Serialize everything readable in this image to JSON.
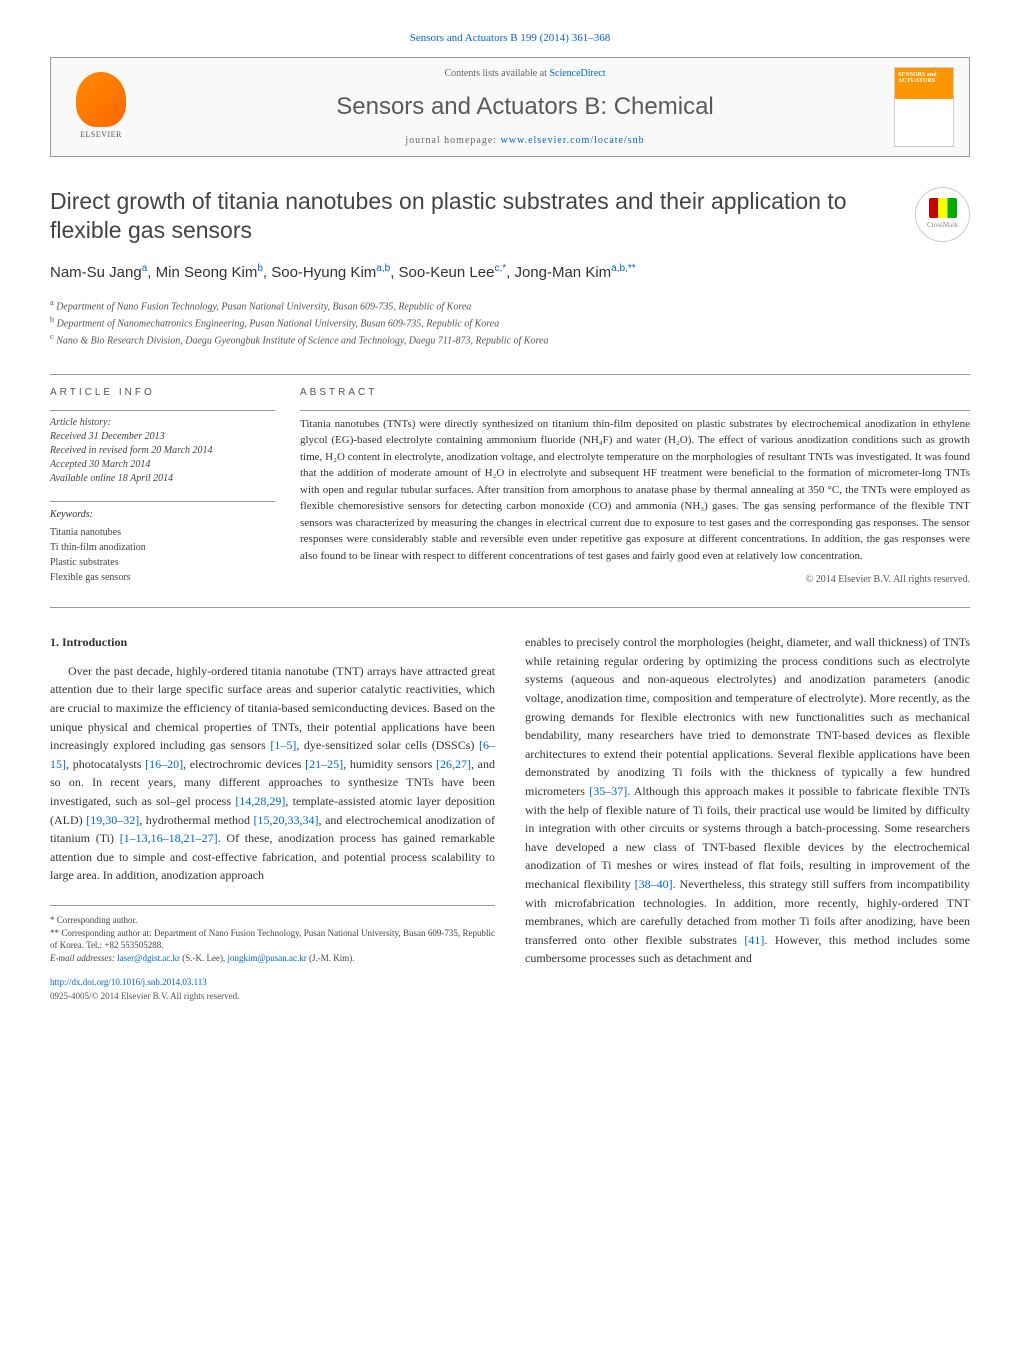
{
  "header": {
    "citation": "Sensors and Actuators B 199 (2014) 361–368",
    "contents_prefix": "Contents lists available at ",
    "contents_link": "ScienceDirect",
    "journal_name": "Sensors and Actuators B: Chemical",
    "homepage_prefix": "journal homepage: ",
    "homepage_link": "www.elsevier.com/locate/snb",
    "publisher": "ELSEVIER",
    "cover_label_1": "SENSORS and",
    "cover_label_2": "ACTUATORS",
    "crossmark": "CrossMark"
  },
  "article": {
    "title": "Direct growth of titania nanotubes on plastic substrates and their application to flexible gas sensors",
    "authors_html": "Nam-Su Jang<sup>a</sup>, Min Seong Kim<sup>b</sup>, Soo-Hyung Kim<sup>a,b</sup>, Soo-Keun Lee<sup>c,*</sup>, Jong-Man Kim<sup>a,b,**</sup>",
    "affiliations": [
      {
        "sup": "a",
        "text": "Department of Nano Fusion Technology, Pusan National University, Busan 609-735, Republic of Korea"
      },
      {
        "sup": "b",
        "text": "Department of Nanomechatronics Engineering, Pusan National University, Busan 609-735, Republic of Korea"
      },
      {
        "sup": "c",
        "text": "Nano & Bio Research Division, Daegu Gyeongbuk Institute of Science and Technology, Daegu 711-873, Republic of Korea"
      }
    ]
  },
  "info": {
    "heading": "ARTICLE INFO",
    "history_label": "Article history:",
    "received": "Received 31 December 2013",
    "revised": "Received in revised form 20 March 2014",
    "accepted": "Accepted 30 March 2014",
    "online": "Available online 18 April 2014",
    "keywords_label": "Keywords:",
    "keywords": [
      "Titania nanotubes",
      "Ti thin-film anodization",
      "Plastic substrates",
      "Flexible gas sensors"
    ]
  },
  "abstract": {
    "heading": "ABSTRACT",
    "text": "Titania nanotubes (TNTs) were directly synthesized on titanium thin-film deposited on plastic substrates by electrochemical anodization in ethylene glycol (EG)-based electrolyte containing ammonium fluoride (NH₄F) and water (H₂O). The effect of various anodization conditions such as growth time, H₂O content in electrolyte, anodization voltage, and electrolyte temperature on the morphologies of resultant TNTs was investigated. It was found that the addition of moderate amount of H₂O in electrolyte and subsequent HF treatment were beneficial to the formation of micrometer-long TNTs with open and regular tubular surfaces. After transition from amorphous to anatase phase by thermal annealing at 350 °C, the TNTs were employed as flexible chemoresistive sensors for detecting carbon monoxide (CO) and ammonia (NH₃) gases. The gas sensing performance of the flexible TNT sensors was characterized by measuring the changes in electrical current due to exposure to test gases and the corresponding gas responses. The sensor responses were considerably stable and reversible even under repetitive gas exposure at different concentrations. In addition, the gas responses were also found to be linear with respect to different concentrations of test gases and fairly good even at relatively low concentration.",
    "copyright": "© 2014 Elsevier B.V. All rights reserved."
  },
  "body": {
    "section_heading": "1. Introduction",
    "col1_para": "Over the past decade, highly-ordered titania nanotube (TNT) arrays have attracted great attention due to their large specific surface areas and superior catalytic reactivities, which are crucial to maximize the efficiency of titania-based semiconducting devices. Based on the unique physical and chemical properties of TNTs, their potential applications have been increasingly explored including gas sensors ",
    "refs": {
      "r1_5": "[1–5]",
      "r6_15": "[6–15]",
      "r16_20": "[16–20]",
      "r21_25": "[21–25]",
      "r26_27": "[26,27]",
      "r14_28_29": "[14,28,29]",
      "r19_30_32": "[19,30–32]",
      "r15_20_33_34": "[15,20,33,34]",
      "r1_13_16_18_21_27": "[1–13,16–18,21–27]",
      "r35_37": "[35–37]",
      "r38_40": "[38–40]",
      "r41": "[41]"
    },
    "col1_p2": ", dye-sensitized solar cells (DSSCs) ",
    "col1_p3": ", photocatalysts ",
    "col1_p4": ", electrochromic devices ",
    "col1_p5": ", humidity sensors ",
    "col1_p6": ", and so on. In recent years, many different approaches to synthesize TNTs have been investigated, such as sol–gel process ",
    "col1_p7": ", template-assisted atomic layer deposition (ALD) ",
    "col1_p8": ", hydrothermal method ",
    "col1_p9": ", and electrochemical anodization of titanium (Ti) ",
    "col1_p10": ". Of these, anodization process has gained remarkable attention due to simple and cost-effective fabrication, and potential process scalability to large area. In addition, anodization approach",
    "col2_para": "enables to precisely control the morphologies (height, diameter, and wall thickness) of TNTs while retaining regular ordering by optimizing the process conditions such as electrolyte systems (aqueous and non-aqueous electrolytes) and anodization parameters (anodic voltage, anodization time, composition and temperature of electrolyte). More recently, as the growing demands for flexible electronics with new functionalities such as mechanical bendability, many researchers have tried to demonstrate TNT-based devices as flexible architectures to extend their potential applications. Several flexible applications have been demonstrated by anodizing Ti foils with the thickness of typically a few hundred micrometers ",
    "col2_p2": ". Although this approach makes it possible to fabricate flexible TNTs with the help of flexible nature of Ti foils, their practical use would be limited by difficulty in integration with other circuits or systems through a batch-processing. Some researchers have developed a new class of TNT-based flexible devices by the electrochemical anodization of Ti meshes or wires instead of flat foils, resulting in improvement of the mechanical flexibility ",
    "col2_p3": ". Nevertheless, this strategy still suffers from incompatibility with microfabrication technologies. In addition, more recently, highly-ordered TNT membranes, which are carefully detached from mother Ti foils after anodizing, have been transferred onto other flexible substrates ",
    "col2_p4": ". However, this method includes some cumbersome processes such as detachment and"
  },
  "footnotes": {
    "corr1": "* Corresponding author.",
    "corr2": "** Corresponding author at: Department of Nano Fusion Technology, Pusan National University, Busan 609-735, Republic of Korea. Tel.: +82 553505288.",
    "email_label": "E-mail addresses: ",
    "email1": "laser@dgist.ac.kr",
    "email1_name": " (S.-K. Lee), ",
    "email2": "jongkim@pusan.ac.kr",
    "email2_name": " (J.-M. Kim)."
  },
  "doi": {
    "link": "http://dx.doi.org/10.1016/j.snb.2014.03.113",
    "issn_line": "0925-4005/© 2014 Elsevier B.V. All rights reserved."
  },
  "colors": {
    "link": "#0066cc",
    "text": "#333333",
    "accent": "#ff8c00",
    "rule": "#999999"
  }
}
